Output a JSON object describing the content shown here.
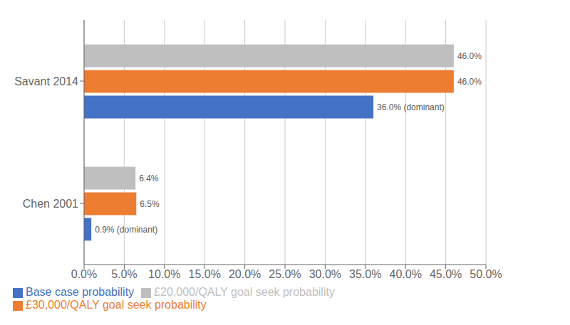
{
  "chart_data": {
    "type": "bar",
    "orientation": "horizontal",
    "categories": [
      "Savant 2014",
      "Chen 2001"
    ],
    "series": [
      {
        "name": "£20,000/QALY goal seek probability",
        "color": "#bfbfbf",
        "values": [
          46.0,
          6.4
        ],
        "value_labels": [
          "46.0%",
          "6.4%"
        ]
      },
      {
        "name": "£30,000/QALY goal seek probability",
        "color": "#ed7d31",
        "values": [
          46.0,
          6.5
        ],
        "value_labels": [
          "46.0%",
          "6.5%"
        ]
      },
      {
        "name": "Base case probability",
        "color": "#4472c4",
        "values": [
          36.0,
          0.9
        ],
        "value_labels": [
          "36.0% (dominant)",
          "0.9% (dominant)"
        ]
      }
    ],
    "xlim": [
      0,
      50
    ],
    "xticks": [
      {
        "value": 0,
        "label": "0.0%"
      },
      {
        "value": 5,
        "label": "5.0%"
      },
      {
        "value": 10,
        "label": "10.0%"
      },
      {
        "value": 15,
        "label": "15.0%"
      },
      {
        "value": 20,
        "label": "20.0%"
      },
      {
        "value": 25,
        "label": "25.0%"
      },
      {
        "value": 30,
        "label": "30.0%"
      },
      {
        "value": 35,
        "label": "35.0%"
      },
      {
        "value": 40,
        "label": "40.0%"
      },
      {
        "value": 45,
        "label": "45.0%"
      },
      {
        "value": 50,
        "label": "50.0%"
      }
    ],
    "grid": true,
    "legend": "bottom",
    "data_labels": true
  }
}
